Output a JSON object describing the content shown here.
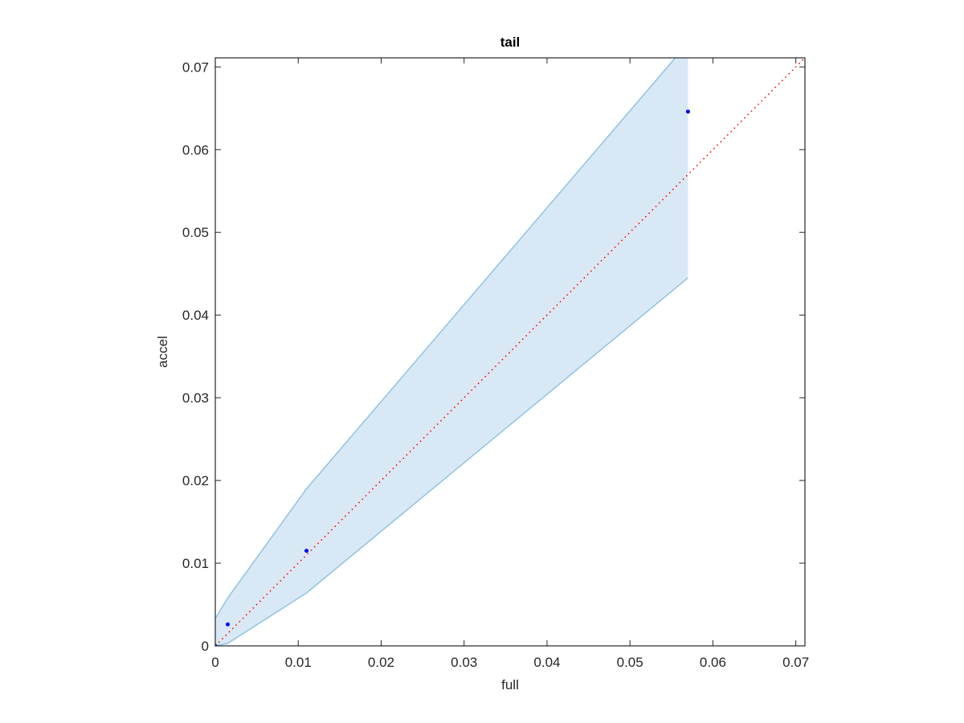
{
  "chart_data": {
    "type": "band-scatter",
    "title": "tail",
    "x_label": "full",
    "y_label": "accel",
    "x": [
      0,
      0.0015,
      0.011,
      0.057
    ],
    "series": [
      {
        "color": "#0000ff",
        "values": [
          0,
          0.0026,
          0.0115,
          0.0646
        ]
      }
    ],
    "band": {
      "color": "#d9e8f5",
      "edge_color": "#8fc3e2",
      "upper": [
        0.0033,
        0.0058,
        0.019,
        0.0729
      ],
      "lower": [
        0,
        0.0003,
        0.0064,
        0.0445
      ]
    },
    "diagonal_color": "#ff0000",
    "xlim": [
      0,
      0.0711
    ],
    "ylim": [
      0,
      0.0711
    ],
    "xticks": [
      0,
      0.01,
      0.02,
      0.03,
      0.04,
      0.05,
      0.06,
      0.07
    ],
    "yticks": [
      0,
      0.01,
      0.02,
      0.03,
      0.04,
      0.05,
      0.06,
      0.07
    ]
  }
}
